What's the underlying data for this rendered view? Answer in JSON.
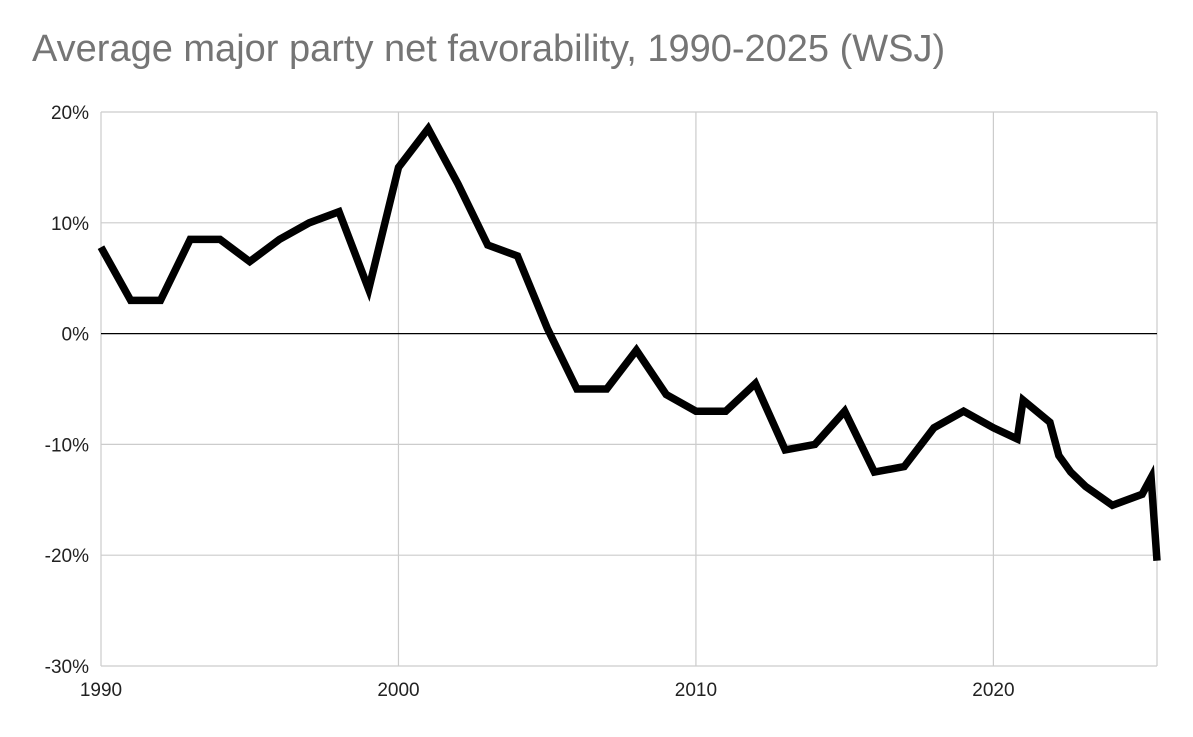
{
  "chart_data": {
    "type": "line",
    "title": "Average major party net favorability, 1990-2025 (WSJ)",
    "xlabel": "",
    "ylabel": "",
    "xlim": [
      1990,
      2025.5
    ],
    "ylim": [
      -30,
      20
    ],
    "x_ticks": [
      1990,
      2000,
      2010,
      2020
    ],
    "x_tick_labels": [
      "1990",
      "2000",
      "2010",
      "2020"
    ],
    "y_ticks": [
      20,
      10,
      0,
      -10,
      -20,
      -30
    ],
    "y_tick_labels": [
      "20%",
      "10%",
      "0%",
      "-10%",
      "-20%",
      "-30%"
    ],
    "grid": true,
    "legend": "none",
    "line_color": "#000000",
    "series": [
      {
        "x": [
          1990,
          1991,
          1992,
          1993,
          1994,
          1995,
          1996,
          1997,
          1998,
          1999,
          2000,
          2001,
          2002,
          2003,
          2004,
          2005,
          2006,
          2007,
          2008,
          2009,
          2010,
          2011,
          2012,
          2013,
          2014,
          2015,
          2016,
          2017,
          2018,
          2019,
          2020,
          2020.8,
          2021,
          2021.9,
          2022.2,
          2022.6,
          2023.1,
          2024,
          2025,
          2025.3,
          2025.5
        ],
        "values": [
          7.8,
          3,
          3,
          8.5,
          8.5,
          6.5,
          8.5,
          10,
          11,
          4,
          15,
          18.5,
          13.5,
          8,
          7,
          0.5,
          -5,
          -5,
          -1.5,
          -5.5,
          -7,
          -7,
          -4.5,
          -10.5,
          -10,
          -7,
          -12.5,
          -12,
          -8.5,
          -7,
          -8.5,
          -9.5,
          -6,
          -8,
          -11,
          -12.5,
          -13.8,
          -15.5,
          -14.5,
          -13,
          -20.5
        ]
      }
    ]
  }
}
